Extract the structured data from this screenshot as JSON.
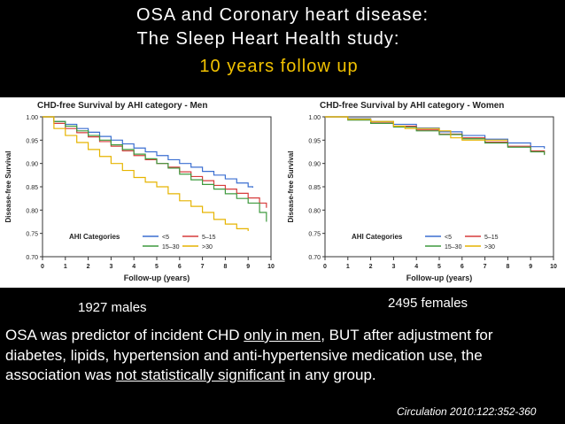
{
  "slide": {
    "title_line1": "OSA and Coronary heart disease:",
    "title_line2": "The Sleep Heart Health study:",
    "title_line3": "10 years follow up",
    "left_caption": "1927 males",
    "right_caption": "2495 females",
    "body": {
      "p1": "OSA was predictor of incident CHD ",
      "p2": "only in men",
      "p3": ", BUT after adjustment for diabetes, lipids, hypertension and anti-hypertensive medication use, the association was ",
      "p4": "not statistically significant",
      "p5": " in any group."
    },
    "citation": "Circulation 2010:122:352-360"
  },
  "colors": {
    "lt5": "#3b6fd1",
    "5to15": "#d63c3c",
    "15to30": "#3f9a3f",
    "gt30": "#e6b400",
    "accent": "#f2c200"
  },
  "chart_data": [
    {
      "type": "line",
      "title": "CHD-free Survival by AHI category - Men",
      "xlabel": "Follow-up (years)",
      "ylabel": "Disease-free Survival",
      "xlim": [
        0,
        10
      ],
      "ylim": [
        0.7,
        1.0
      ],
      "xticks": [
        "0",
        "1",
        "2",
        "3",
        "4",
        "5",
        "6",
        "7",
        "8",
        "9",
        "10"
      ],
      "yticks": [
        "0.70",
        "0.75",
        "0.80",
        "0.85",
        "0.90",
        "0.95",
        "1.00"
      ],
      "legend_title": "AHI Categories",
      "series": [
        {
          "name": "<5",
          "color": "#3b6fd1",
          "x": [
            0,
            0.5,
            1,
            1.5,
            2,
            2.5,
            3,
            3.5,
            4,
            4.5,
            5,
            5.5,
            6,
            6.5,
            7,
            7.5,
            8,
            8.5,
            9,
            9.2
          ],
          "y": [
            1.0,
            0.99,
            0.984,
            0.975,
            0.967,
            0.958,
            0.95,
            0.942,
            0.933,
            0.925,
            0.917,
            0.908,
            0.9,
            0.892,
            0.883,
            0.875,
            0.867,
            0.858,
            0.85,
            0.848
          ]
        },
        {
          "name": "5–15",
          "color": "#d63c3c",
          "x": [
            0,
            0.5,
            1,
            1.5,
            2,
            2.5,
            3,
            3.5,
            4,
            4.5,
            5,
            5.5,
            6,
            6.5,
            7,
            7.5,
            8,
            8.5,
            9,
            9.5,
            9.8
          ],
          "y": [
            1.0,
            0.986,
            0.975,
            0.966,
            0.957,
            0.947,
            0.937,
            0.927,
            0.917,
            0.908,
            0.9,
            0.892,
            0.882,
            0.872,
            0.863,
            0.853,
            0.845,
            0.836,
            0.826,
            0.815,
            0.805
          ]
        },
        {
          "name": "15–30",
          "color": "#3f9a3f",
          "x": [
            0,
            0.5,
            1,
            1.5,
            2,
            2.5,
            3,
            3.5,
            4,
            4.5,
            5,
            5.5,
            6,
            6.5,
            7,
            7.5,
            8,
            8.5,
            9,
            9.5,
            9.8
          ],
          "y": [
            1.0,
            0.99,
            0.98,
            0.97,
            0.96,
            0.95,
            0.94,
            0.93,
            0.92,
            0.91,
            0.9,
            0.89,
            0.877,
            0.865,
            0.855,
            0.845,
            0.835,
            0.825,
            0.815,
            0.795,
            0.775
          ]
        },
        {
          "name": ">30",
          "color": "#e6b400",
          "x": [
            0,
            0.5,
            1,
            1.5,
            2,
            2.5,
            3,
            3.5,
            4,
            4.5,
            5,
            5.5,
            6,
            6.5,
            7,
            7.5,
            8,
            8.5,
            9
          ],
          "y": [
            1.0,
            0.975,
            0.96,
            0.945,
            0.93,
            0.915,
            0.9,
            0.885,
            0.87,
            0.86,
            0.85,
            0.835,
            0.82,
            0.808,
            0.795,
            0.78,
            0.77,
            0.76,
            0.755
          ]
        }
      ]
    },
    {
      "type": "line",
      "title": "CHD-free Survival by AHI category - Women",
      "xlabel": "Follow-up (years)",
      "ylabel": "Disease-free Survival",
      "xlim": [
        0,
        10
      ],
      "ylim": [
        0.7,
        1.0
      ],
      "xticks": [
        "0",
        "1",
        "2",
        "3",
        "4",
        "5",
        "6",
        "7",
        "8",
        "9",
        "10"
      ],
      "yticks": [
        "0.70",
        "0.75",
        "0.80",
        "0.85",
        "0.90",
        "0.95",
        "1.00"
      ],
      "legend_title": "AHI Categories",
      "series": [
        {
          "name": "<5",
          "color": "#3b6fd1",
          "x": [
            0,
            1,
            2,
            3,
            4,
            5,
            6,
            7,
            8,
            9,
            9.6
          ],
          "y": [
            1.0,
            0.996,
            0.99,
            0.984,
            0.976,
            0.968,
            0.96,
            0.952,
            0.944,
            0.936,
            0.932
          ]
        },
        {
          "name": "5–15",
          "color": "#d63c3c",
          "x": [
            0,
            1,
            2,
            3,
            4,
            5,
            6,
            7,
            8,
            9,
            9.6
          ],
          "y": [
            1.0,
            0.994,
            0.987,
            0.98,
            0.972,
            0.963,
            0.955,
            0.946,
            0.937,
            0.927,
            0.92
          ]
        },
        {
          "name": "15–30",
          "color": "#3f9a3f",
          "x": [
            0,
            1,
            2,
            3,
            4,
            5,
            6,
            7,
            8,
            9,
            9.6
          ],
          "y": [
            1.0,
            0.993,
            0.986,
            0.978,
            0.97,
            0.962,
            0.953,
            0.944,
            0.935,
            0.925,
            0.918
          ]
        },
        {
          "name": ">30",
          "color": "#e6b400",
          "x": [
            0,
            1,
            2,
            3,
            3.5,
            5,
            5.5,
            6,
            7,
            7.5,
            8
          ],
          "y": [
            1.0,
            0.995,
            0.99,
            0.98,
            0.975,
            0.97,
            0.955,
            0.95,
            0.95,
            0.95,
            0.95
          ]
        }
      ]
    }
  ]
}
